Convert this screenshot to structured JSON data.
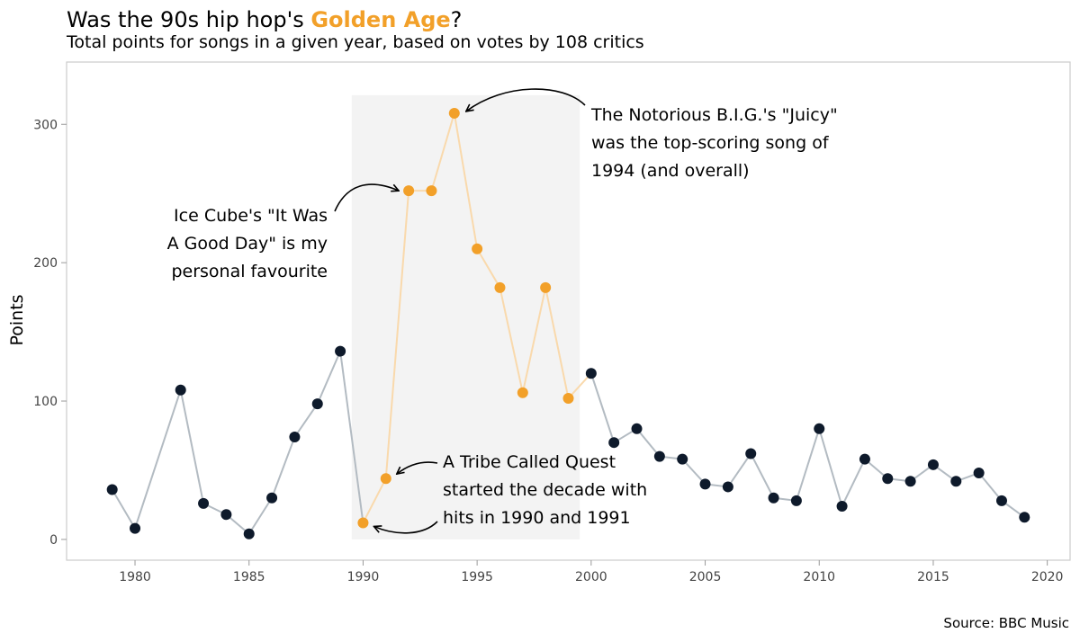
{
  "header": {
    "title_pre": "Was the 90s hip hop's ",
    "title_highlight": "Golden Age",
    "title_post": "?",
    "subtitle": "Total points for songs in a given year, based on votes by 108 critics"
  },
  "source": "Source: BBC Music",
  "colors": {
    "highlight": "#f2a029",
    "dark_point": "#0e1a2b",
    "line": "#b3bbc2",
    "highlight_line": "#f9d9ac",
    "band": "#f3f3f3"
  },
  "chart_data": {
    "type": "line",
    "title": "Was the 90s hip hop's Golden Age?",
    "subtitle": "Total points for songs in a given year, based on votes by 108 critics",
    "xlabel": "",
    "ylabel": "Points",
    "xlim": [
      1977.0,
      2021.0
    ],
    "ylim": [
      -15,
      345
    ],
    "xticks": [
      1980,
      1985,
      1990,
      1995,
      2000,
      2005,
      2010,
      2015,
      2020
    ],
    "yticks": [
      0,
      100,
      200,
      300
    ],
    "highlight_range": [
      1990,
      1999
    ],
    "grid": false,
    "x": [
      1979,
      1980,
      1982,
      1983,
      1984,
      1985,
      1986,
      1987,
      1988,
      1989,
      1990,
      1991,
      1992,
      1993,
      1994,
      1995,
      1996,
      1997,
      1998,
      1999,
      2000,
      2001,
      2002,
      2003,
      2004,
      2005,
      2006,
      2007,
      2008,
      2009,
      2010,
      2011,
      2012,
      2013,
      2014,
      2015,
      2016,
      2017,
      2018,
      2019
    ],
    "y": [
      36,
      8,
      108,
      26,
      18,
      4,
      30,
      74,
      98,
      136,
      12,
      44,
      252,
      252,
      308,
      210,
      182,
      106,
      182,
      102,
      120,
      70,
      80,
      60,
      58,
      40,
      38,
      62,
      30,
      28,
      80,
      24,
      58,
      44,
      42,
      54,
      42,
      48,
      28,
      16
    ],
    "annotations": [
      {
        "lines": [
          "The Notorious B.I.G.'s \"Juicy\"",
          "was the top-scoring song of",
          "1994 (and overall)"
        ],
        "target_x": 1994,
        "target_y": 308
      },
      {
        "lines": [
          "Ice Cube's \"It Was",
          "A Good Day\" is my",
          "personal favourite"
        ],
        "target_x": 1992,
        "target_y": 252
      },
      {
        "lines": [
          "A Tribe Called Quest",
          "started the decade with",
          "hits in 1990 and 1991"
        ],
        "target_x": 1991,
        "target_y": 44
      }
    ]
  }
}
